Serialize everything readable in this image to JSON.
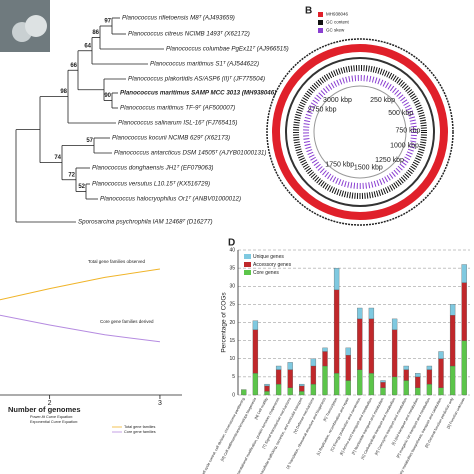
{
  "panel_labels": [
    "B",
    "D"
  ],
  "tree": {
    "leaves": [
      {
        "text": "Planococcus rifietoensis M8ᵀ (AJ493659)",
        "bold": false
      },
      {
        "text": "Planococcus citreus NCIMB 1493ᵀ (X62172)",
        "bold": false
      },
      {
        "text": "Planococcus columbae PgEx11ᵀ (AJ966515)",
        "bold": false
      },
      {
        "text": "Planococcus maritimus S1ᵀ (AJ544622)",
        "bold": false
      },
      {
        "text": "Planococcus plakortidis AS/ASP6 (II)ᵀ (JF775504)",
        "bold": false
      },
      {
        "text": "Planococcus maritimus SAMP MCC 3013 (MH938046)",
        "bold": true
      },
      {
        "text": "Planococcus maritimus TF-9ᵀ (AF500007)",
        "bold": false
      },
      {
        "text": "Planococcus salinarum ISL-16ᵀ (FJ765415)",
        "bold": false
      },
      {
        "text": "Planococcus kocurii NCIMB 629ᵀ (X62173)",
        "bold": false
      },
      {
        "text": "Planococcus antarcticus DSM 14505ᵀ (AJYB01000131)",
        "bold": false
      },
      {
        "text": "Planococcus donghaensis JH1ᵀ (EF079063)",
        "bold": false
      },
      {
        "text": "Planococcus versutus L10.15ᵀ (KX516729)",
        "bold": false
      },
      {
        "text": "Planococcus halocryophilus Or1ᵀ (ANBV01000012)",
        "bold": false
      },
      {
        "text": "Sporosarcina psychrophila IAM 12468ᵀ (D16277)",
        "bold": false
      }
    ],
    "bootstrap": [
      "97",
      "86",
      "64",
      "66",
      "90",
      "98",
      "74",
      "57",
      "72",
      "52"
    ]
  },
  "genome_map": {
    "legend": [
      {
        "name": "MH938046",
        "color": "#e0202a"
      },
      {
        "name": "GC content",
        "color": "#111111"
      },
      {
        "name": "GC skew",
        "color": "#8a3fd1"
      }
    ],
    "labels": [
      "3000 kbp",
      "2750 kbp",
      "250 kbp",
      "500 kbp",
      "750 kbp",
      "1000 kbp",
      "1250 kbp",
      "1500 kbp",
      "1750 kbp"
    ]
  },
  "chart_data": [
    {
      "type": "line",
      "xlabel": "Number of genomes",
      "xlim": [
        1.55,
        3.2
      ],
      "xticks": [
        2,
        3
      ],
      "ylim": [
        0,
        100
      ],
      "x": [
        1.55,
        2,
        2.5,
        3
      ],
      "series": [
        {
          "name": "Total gene families",
          "color": "#f0b429",
          "values": [
            68,
            76,
            84,
            90
          ]
        },
        {
          "name": "Core gene families",
          "color": "#b58be0",
          "values": [
            57,
            50,
            43,
            38
          ]
        }
      ],
      "annotations": [
        "Total gene families observed",
        "Core gene families derived"
      ],
      "legend_text": [
        "Power-fit Curve Equation:",
        "Exponential Curve Equation:"
      ]
    },
    {
      "type": "stacked_bar",
      "ylabel": "Percentage of COGs",
      "ylim": [
        0,
        40
      ],
      "yticks": [
        0,
        5,
        10,
        15,
        20,
        25,
        30,
        35,
        40
      ],
      "grid": true,
      "categories": [
        "[D] Cell cycle control, cell division, chromosome partitioning",
        "[M] Cell wall/membrane/envelope biogenesis",
        "[N] Cell motility",
        "[O] Posttranslational modification, protein turnover, chaperones",
        "[T] Signal transduction mechanisms",
        "[U] Intracellular trafficking, secretion, and vesicular transport",
        "[V] Defense mechanisms",
        "[J] Translation, ribosomal structure and biogenesis",
        "[K] Transcription",
        "[L] Replication, recombination and repair",
        "[C] Energy production and conversion",
        "[E] Amino acid transport and metabolism",
        "[F] Nucleotide transport and metabolism",
        "[G] Carbohydrate transport and metabolism",
        "[H] Coenzyme transport and metabolism",
        "[I] Lipid transport and metabolism",
        "[P] Inorganic ion transport and metabolism",
        "[Q] Secondary metabolites biosynthesis, transport and catabolism",
        "[R] General function prediction only",
        "[S] Function unknown"
      ],
      "series": [
        {
          "name": "Core genes",
          "color": "#5cc54a",
          "values": [
            1.5,
            6,
            1,
            3,
            2,
            1,
            3,
            8,
            6,
            4,
            7,
            6,
            2,
            5,
            4,
            2,
            3,
            2,
            8,
            15
          ]
        },
        {
          "name": "Accessory genes",
          "color": "#c0282b",
          "values": [
            0,
            12,
            1.5,
            4,
            5,
            1.5,
            5,
            4,
            23,
            7,
            14,
            15,
            1.5,
            13,
            3,
            3,
            4,
            8,
            14,
            16
          ]
        },
        {
          "name": "Unique genes",
          "color": "#7fc9e0",
          "values": [
            0,
            2.5,
            0.5,
            1,
            2,
            0.5,
            2,
            1,
            6,
            2,
            3,
            3,
            0.5,
            3,
            1,
            1,
            1,
            2,
            3,
            5
          ]
        }
      ]
    }
  ]
}
